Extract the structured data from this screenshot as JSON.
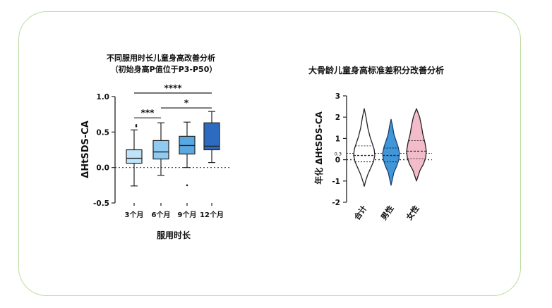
{
  "colors": {
    "card_border": "#b9dca0",
    "box_fill": [
      "#bfe3f8",
      "#8fcbf0",
      "#5aa8e2",
      "#2c6bbf"
    ],
    "violin_fill": [
      "#ffffff",
      "#3f96d8",
      "#f3bccb"
    ]
  },
  "chart_data": [
    {
      "type": "box",
      "title_line1": "不同服用时长儿童身高改善分析",
      "title_line2": "（初始身高P值位于P3-P50）",
      "xlabel": "服用时长",
      "ylabel": "ΔHtSDS-CA",
      "ylim": [
        -0.5,
        1.0
      ],
      "yticks": [
        -0.5,
        0.0,
        0.5,
        1.0
      ],
      "ytick_labels": [
        "-0.5",
        "0.0",
        "0.5",
        "1.0"
      ],
      "reference_line": 0.0,
      "categories": [
        "3个月",
        "6个月",
        "9个月",
        "12个月"
      ],
      "boxes": [
        {
          "whisker_low": -0.26,
          "q1": 0.06,
          "median": 0.13,
          "q3": 0.25,
          "whisker_high": 0.53,
          "outliers": [
            0.58,
            0.6
          ]
        },
        {
          "whisker_low": -0.11,
          "q1": 0.12,
          "median": 0.22,
          "q3": 0.38,
          "whisker_high": 0.63,
          "outliers": []
        },
        {
          "whisker_low": 0.0,
          "q1": 0.19,
          "median": 0.31,
          "q3": 0.44,
          "whisker_high": 0.64,
          "outliers": [
            -0.25
          ]
        },
        {
          "whisker_low": 0.07,
          "q1": 0.25,
          "median": 0.3,
          "q3": 0.63,
          "whisker_high": 0.79,
          "outliers": []
        }
      ],
      "significance": [
        {
          "from": 0,
          "to": 1,
          "label": "***",
          "y": 0.7
        },
        {
          "from": 1,
          "to": 3,
          "label": "*",
          "y": 0.84
        },
        {
          "from": 0,
          "to": 3,
          "label": "****",
          "y": 1.05
        }
      ]
    },
    {
      "type": "violin",
      "title": "大骨龄儿童身高标准差积分改善分析",
      "ylabel": "年化 ΔHtSDS-CA",
      "ylim": [
        -2,
        3
      ],
      "yticks": [
        -2,
        -1,
        0,
        1,
        2,
        3
      ],
      "ytick_labels": [
        "-2",
        "-1",
        "0",
        "1",
        "2",
        "3"
      ],
      "reference_line": 0,
      "marked_value": 0.3,
      "marked_value_label": "0.3",
      "categories": [
        "合计",
        "男性",
        "女性"
      ]
    }
  ]
}
